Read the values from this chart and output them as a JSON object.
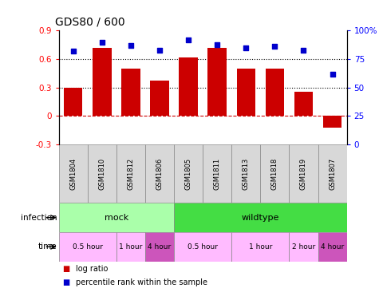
{
  "title": "GDS80 / 600",
  "samples": [
    "GSM1804",
    "GSM1810",
    "GSM1812",
    "GSM1806",
    "GSM1805",
    "GSM1811",
    "GSM1813",
    "GSM1818",
    "GSM1819",
    "GSM1807"
  ],
  "log_ratio": [
    0.3,
    0.72,
    0.5,
    0.37,
    0.62,
    0.72,
    0.5,
    0.5,
    0.26,
    -0.12
  ],
  "percentile": [
    82,
    90,
    87,
    83,
    92,
    88,
    85,
    86,
    83,
    62
  ],
  "ylim_left": [
    -0.3,
    0.9
  ],
  "ylim_right": [
    0,
    100
  ],
  "yticks_left": [
    -0.3,
    0.0,
    0.3,
    0.6,
    0.9
  ],
  "yticks_right": [
    0,
    25,
    50,
    75,
    100
  ],
  "ytick_labels_left": [
    "-0.3",
    "0",
    "0.3",
    "0.6",
    "0.9"
  ],
  "ytick_labels_right": [
    "0",
    "25",
    "50",
    "75",
    "100%"
  ],
  "hlines": [
    0.3,
    0.6
  ],
  "bar_color": "#cc0000",
  "dot_color": "#0000cc",
  "zero_line_color": "#cc0000",
  "infection_groups": [
    {
      "label": "mock",
      "start": 0,
      "end": 4,
      "color": "#aaffaa"
    },
    {
      "label": "wildtype",
      "start": 4,
      "end": 10,
      "color": "#44dd44"
    }
  ],
  "time_groups": [
    {
      "label": "0.5 hour",
      "start": 0,
      "end": 2,
      "color": "#ffbbff"
    },
    {
      "label": "1 hour",
      "start": 2,
      "end": 3,
      "color": "#ffbbff"
    },
    {
      "label": "4 hour",
      "start": 3,
      "end": 4,
      "color": "#cc55bb"
    },
    {
      "label": "0.5 hour",
      "start": 4,
      "end": 6,
      "color": "#ffbbff"
    },
    {
      "label": "1 hour",
      "start": 6,
      "end": 8,
      "color": "#ffbbff"
    },
    {
      "label": "2 hour",
      "start": 8,
      "end": 9,
      "color": "#ffbbff"
    },
    {
      "label": "4 hour",
      "start": 9,
      "end": 10,
      "color": "#cc55bb"
    }
  ],
  "legend_items": [
    {
      "label": "log ratio",
      "color": "#cc0000"
    },
    {
      "label": "percentile rank within the sample",
      "color": "#0000cc"
    }
  ],
  "infection_label": "infection",
  "time_label": "time"
}
